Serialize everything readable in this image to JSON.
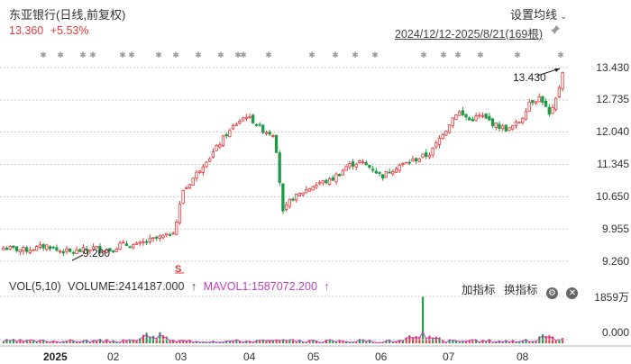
{
  "header": {
    "title": "东亚银行(日线,前复权)",
    "price": "13.360",
    "change": "+5.53%",
    "settings_label": "设置均线",
    "settings_chevron": "chevron-down-icon",
    "date_range": "2024/12/12-2025/8/21(169根)",
    "pin_icon": "pin-icon"
  },
  "colors": {
    "up": "#e4393c",
    "down": "#1f9a46",
    "mavol": "#c43cc4",
    "ma": "#6a7fd6",
    "grid": "#c8c8c8"
  },
  "price_axis": {
    "labels": [
      "13.430",
      "12.735",
      "12.040",
      "11.345",
      "10.650",
      "9.955",
      "9.260"
    ]
  },
  "annotations": {
    "high_label": "13.430",
    "low_label": "9.260",
    "signal_marker": "S"
  },
  "volume": {
    "legend_prefix": "VOL(5,10)",
    "volume_text": "VOLUME:2414187.000",
    "mavol_text": "MAVOL1:1587072.200",
    "tool_add": "加指标",
    "tool_switch": "换指标",
    "gear_icon": "gear-icon",
    "close_icon": "close-icon",
    "axis_labels": [
      "1859万",
      "0.000"
    ]
  },
  "x_axis": {
    "labels": [
      "2025",
      "02",
      "03",
      "04",
      "05",
      "06",
      "07",
      "08"
    ]
  },
  "chart_data": {
    "type": "candlestick",
    "title": "东亚银行(日线,前复权)",
    "ylim": [
      9.26,
      13.43
    ],
    "y_ticks": [
      13.43,
      12.735,
      12.04,
      11.345,
      10.65,
      9.955,
      9.26
    ],
    "x_ticks": [
      "2025",
      "02",
      "03",
      "04",
      "05",
      "06",
      "07",
      "08"
    ],
    "close_path": [
      [
        0,
        9.55
      ],
      [
        12,
        9.5
      ],
      [
        25,
        9.6
      ],
      [
        30,
        9.5
      ],
      [
        38,
        9.45
      ],
      [
        50,
        9.55
      ],
      [
        60,
        9.5
      ],
      [
        65,
        9.62
      ],
      [
        75,
        9.6
      ],
      [
        80,
        9.7
      ],
      [
        90,
        9.8
      ],
      [
        95,
        9.95
      ],
      [
        100,
        10.8
      ],
      [
        110,
        11.3
      ],
      [
        120,
        11.8
      ],
      [
        128,
        12.2
      ],
      [
        135,
        12.4
      ],
      [
        143,
        12.1
      ],
      [
        150,
        12.0
      ],
      [
        155,
        10.3
      ],
      [
        160,
        10.6
      ],
      [
        168,
        10.8
      ],
      [
        175,
        10.95
      ],
      [
        182,
        11.0
      ],
      [
        190,
        11.3
      ],
      [
        197,
        11.4
      ],
      [
        205,
        11.25
      ],
      [
        210,
        11.1
      ],
      [
        218,
        11.3
      ],
      [
        225,
        11.4
      ],
      [
        232,
        11.5
      ],
      [
        237,
        11.6
      ],
      [
        242,
        11.9
      ],
      [
        248,
        12.3
      ],
      [
        252,
        12.5
      ],
      [
        258,
        12.3
      ],
      [
        265,
        12.4
      ],
      [
        272,
        12.2
      ],
      [
        280,
        12.1
      ],
      [
        287,
        12.3
      ],
      [
        292,
        12.7
      ],
      [
        298,
        12.8
      ],
      [
        303,
        12.4
      ],
      [
        307,
        12.85
      ],
      [
        310,
        13.36
      ]
    ],
    "volume_max": "1859万",
    "volume_last": 2414187.0,
    "mavol1_last": 1587072.2,
    "high": 13.43,
    "low": 9.26,
    "last_close": 13.36,
    "change_pct": 5.53
  }
}
